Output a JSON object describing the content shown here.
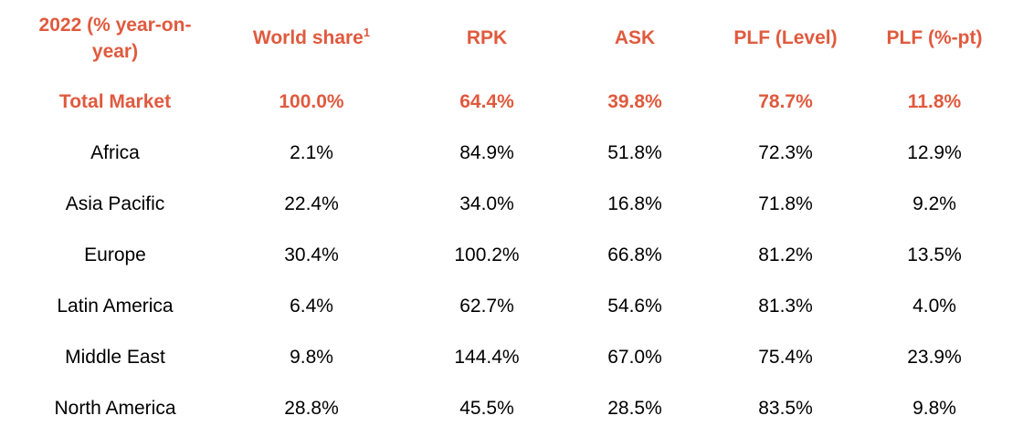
{
  "header": {
    "label_line1": "2022 (% year-on-",
    "label_line2": "year)",
    "world_share": "World share",
    "world_share_sup": "1",
    "rpk": "RPK",
    "ask": "ASK",
    "plf_level": "PLF (Level)",
    "plf_pt": "PLF (%-pt)"
  },
  "accent_color": "#e05a3e",
  "rows": [
    {
      "region": "Total Market",
      "world_share": "100.0%",
      "rpk": "64.4%",
      "ask": "39.8%",
      "plf_level": "78.7%",
      "plf_pt": "11.8%"
    },
    {
      "region": "Africa",
      "world_share": "2.1%",
      "rpk": "84.9%",
      "ask": "51.8%",
      "plf_level": "72.3%",
      "plf_pt": "12.9%"
    },
    {
      "region": "Asia Pacific",
      "world_share": "22.4%",
      "rpk": "34.0%",
      "ask": "16.8%",
      "plf_level": "71.8%",
      "plf_pt": "9.2%"
    },
    {
      "region": "Europe",
      "world_share": "30.4%",
      "rpk": "100.2%",
      "ask": "66.8%",
      "plf_level": "81.2%",
      "plf_pt": "13.5%"
    },
    {
      "region": "Latin America",
      "world_share": "6.4%",
      "rpk": "62.7%",
      "ask": "54.6%",
      "plf_level": "81.3%",
      "plf_pt": "4.0%"
    },
    {
      "region": "Middle East",
      "world_share": "9.8%",
      "rpk": "144.4%",
      "ask": "67.0%",
      "plf_level": "75.4%",
      "plf_pt": "23.9%"
    },
    {
      "region": "North America",
      "world_share": "28.8%",
      "rpk": "45.5%",
      "ask": "28.5%",
      "plf_level": "83.5%",
      "plf_pt": "9.8%"
    }
  ]
}
